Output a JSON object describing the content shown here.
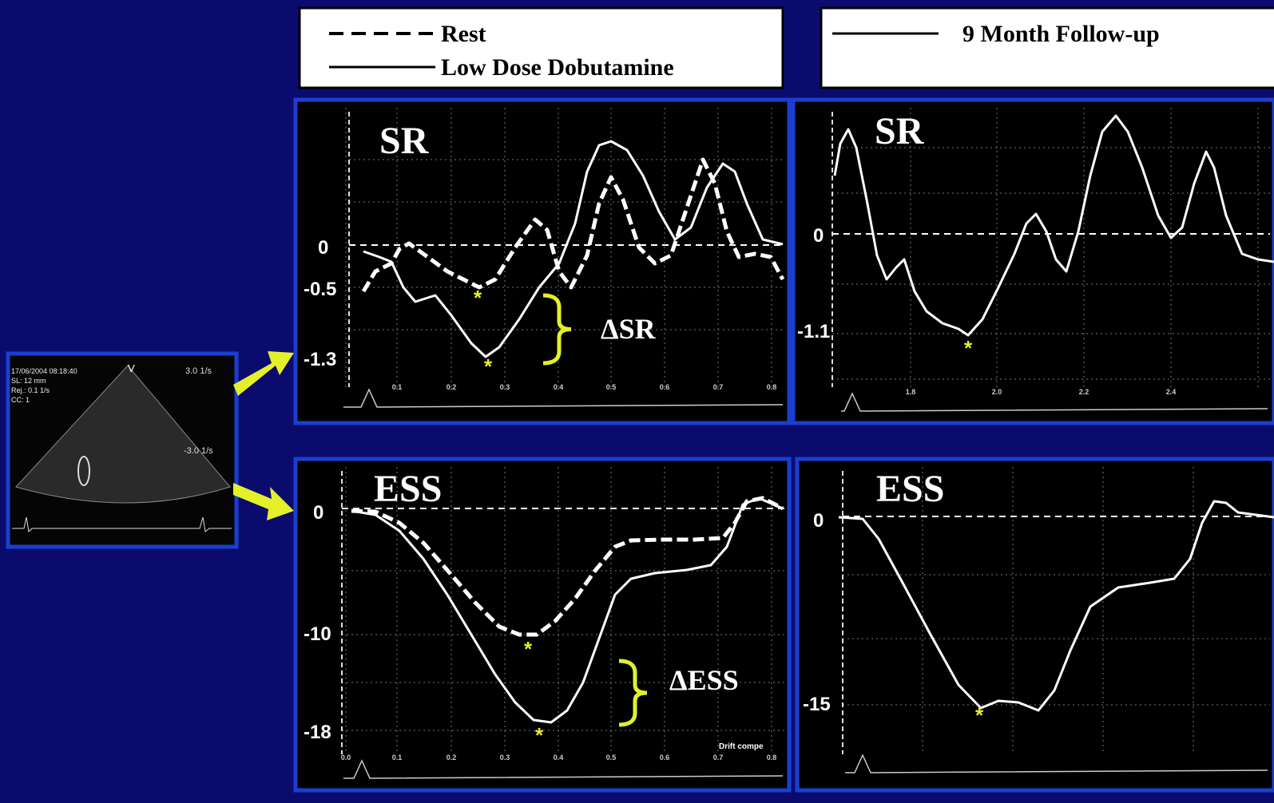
{
  "legend_left": {
    "rest": "Rest",
    "dobutamine": "Low Dose Dobutamine"
  },
  "legend_right": {
    "follow_up": "9 Month Follow-up"
  },
  "echo": {
    "lines": [
      "17/06/2004 08:18:40",
      "SL: 12 mm",
      "Rej.: 0.1 1/s",
      "CC: 1"
    ],
    "view": "V",
    "scale_top": "3.0 1/s",
    "scale_bottom": "-3.0 1/s"
  },
  "panels": [
    {
      "title": "SR",
      "y_labels": [
        "0",
        "-0.5",
        "-1.3"
      ],
      "x_labels": [
        "0.1",
        "0.2",
        "0.3",
        "0.4",
        "0.5",
        "0.6",
        "0.7",
        "0.8"
      ],
      "delta": "ΔSR"
    },
    {
      "title": "SR",
      "y_labels": [
        "0",
        "-1.1"
      ],
      "x_labels": [
        "1.8",
        "2.0",
        "2.2",
        "2.4"
      ]
    },
    {
      "title": "ESS",
      "y_labels": [
        "0",
        "-10",
        "-18"
      ],
      "x_labels": [
        "0.0",
        "0.1",
        "0.2",
        "0.3",
        "0.4",
        "0.5",
        "0.6",
        "0.7",
        "0.8"
      ],
      "delta": "ΔESS",
      "note": "Drift compe"
    },
    {
      "title": "ESS",
      "y_labels": [
        "0",
        "-15"
      ],
      "x_labels": []
    }
  ],
  "asterisk": "*"
}
